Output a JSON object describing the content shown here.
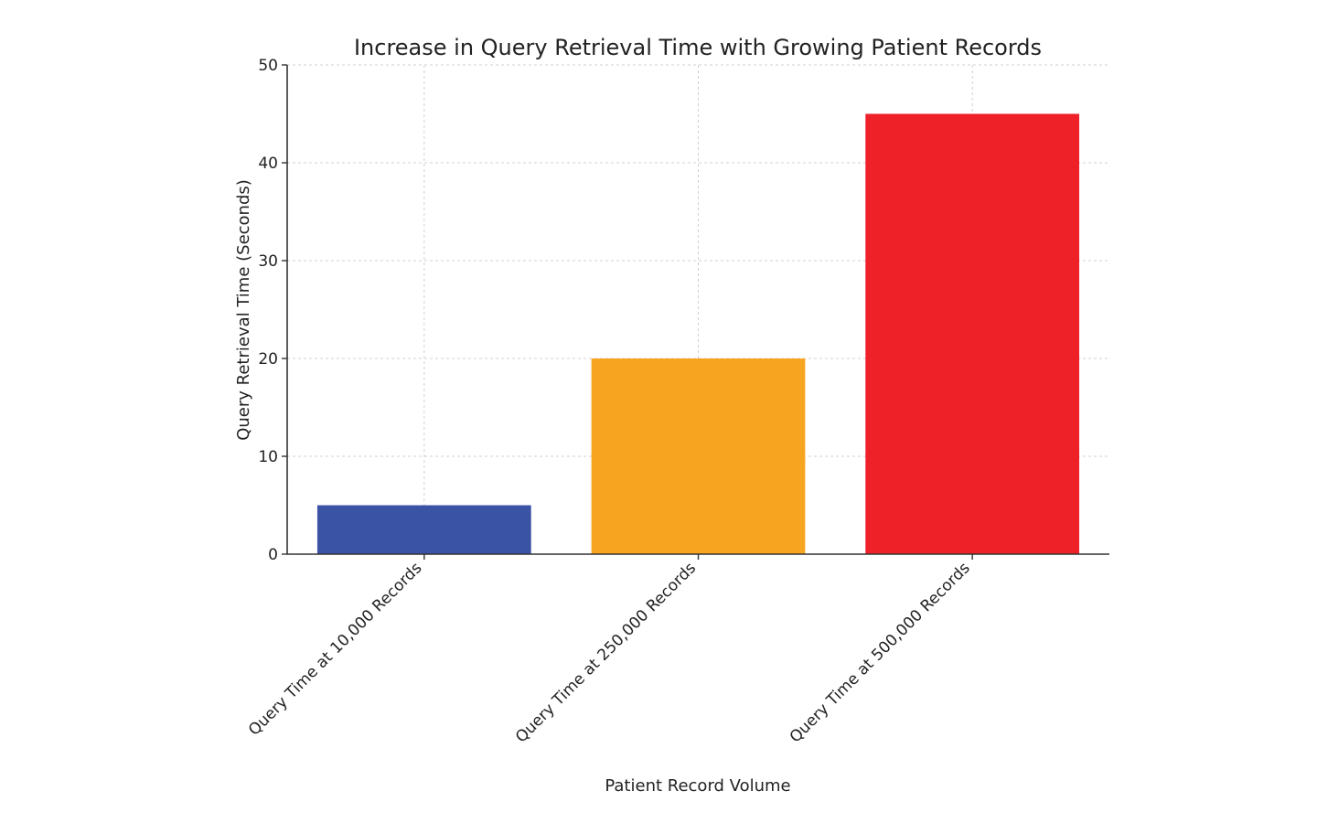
{
  "chart_data": {
    "type": "bar",
    "title": "Increase in Query Retrieval Time with Growing Patient Records",
    "xlabel": "Patient Record Volume",
    "ylabel": "Query Retrieval Time (Seconds)",
    "categories": [
      "Query Time at 10,000 Records",
      "Query Time at 250,000 Records",
      "Query Time at 500,000 Records"
    ],
    "values": [
      5,
      20,
      45
    ],
    "colors": [
      "#3b53a4",
      "#f7a520",
      "#ee2028"
    ],
    "ylim": [
      0,
      50
    ],
    "yticks": [
      0,
      10,
      20,
      30,
      40,
      50
    ],
    "grid": true,
    "legend": "none"
  }
}
